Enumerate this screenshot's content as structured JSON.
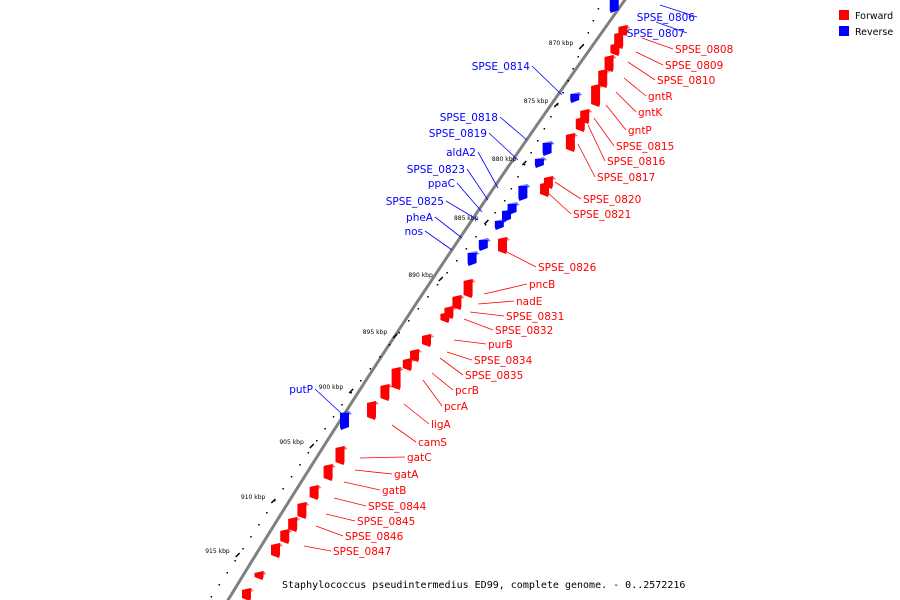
{
  "colors": {
    "forward": "#ff0000",
    "reverse": "#0000ff",
    "backbone": "#808080"
  },
  "legend": [
    {
      "label": "Forward",
      "strand": "forward"
    },
    {
      "label": "Reverse",
      "strand": "reverse"
    }
  ],
  "caption": "Staphylococcus pseudintermedius ED99, complete genome. - 0..2572216",
  "ticks": [
    "870 kbp",
    "875 kbp",
    "880 kbp",
    "885 kbp",
    "890 kbp",
    "895 kbp",
    "900 kbp",
    "905 kbp",
    "910 kbp",
    "915 kbp"
  ],
  "features": [
    {
      "name": "SPSE_0806",
      "strand": "reverse"
    },
    {
      "name": "SPSE_0807",
      "strand": "reverse"
    },
    {
      "name": "SPSE_0808",
      "strand": "forward"
    },
    {
      "name": "SPSE_0809",
      "strand": "forward"
    },
    {
      "name": "SPSE_0810",
      "strand": "forward"
    },
    {
      "name": "gntR",
      "strand": "forward"
    },
    {
      "name": "gntK",
      "strand": "forward"
    },
    {
      "name": "gntP",
      "strand": "forward"
    },
    {
      "name": "SPSE_0815",
      "strand": "forward"
    },
    {
      "name": "SPSE_0816",
      "strand": "forward"
    },
    {
      "name": "SPSE_0817",
      "strand": "forward"
    },
    {
      "name": "SPSE_0820",
      "strand": "forward"
    },
    {
      "name": "SPSE_0821",
      "strand": "forward"
    },
    {
      "name": "SPSE_0826",
      "strand": "forward"
    },
    {
      "name": "pncB",
      "strand": "forward"
    },
    {
      "name": "nadE",
      "strand": "forward"
    },
    {
      "name": "SPSE_0831",
      "strand": "forward"
    },
    {
      "name": "SPSE_0832",
      "strand": "forward"
    },
    {
      "name": "purB",
      "strand": "forward"
    },
    {
      "name": "SPSE_0834",
      "strand": "forward"
    },
    {
      "name": "SPSE_0835",
      "strand": "forward"
    },
    {
      "name": "pcrB",
      "strand": "forward"
    },
    {
      "name": "pcrA",
      "strand": "forward"
    },
    {
      "name": "ligA",
      "strand": "forward"
    },
    {
      "name": "camS",
      "strand": "forward"
    },
    {
      "name": "gatC",
      "strand": "forward"
    },
    {
      "name": "gatA",
      "strand": "forward"
    },
    {
      "name": "gatB",
      "strand": "forward"
    },
    {
      "name": "SPSE_0844",
      "strand": "forward"
    },
    {
      "name": "SPSE_0845",
      "strand": "forward"
    },
    {
      "name": "SPSE_0846",
      "strand": "forward"
    },
    {
      "name": "SPSE_0847",
      "strand": "forward"
    },
    {
      "name": "SPSE_0814",
      "strand": "reverse"
    },
    {
      "name": "SPSE_0818",
      "strand": "reverse"
    },
    {
      "name": "SPSE_0819",
      "strand": "reverse"
    },
    {
      "name": "aldA2",
      "strand": "reverse"
    },
    {
      "name": "SPSE_0823",
      "strand": "reverse"
    },
    {
      "name": "ppaC",
      "strand": "reverse"
    },
    {
      "name": "SPSE_0825",
      "strand": "reverse"
    },
    {
      "name": "pheA",
      "strand": "reverse"
    },
    {
      "name": "nos",
      "strand": "reverse"
    },
    {
      "name": "putP",
      "strand": "reverse"
    }
  ]
}
